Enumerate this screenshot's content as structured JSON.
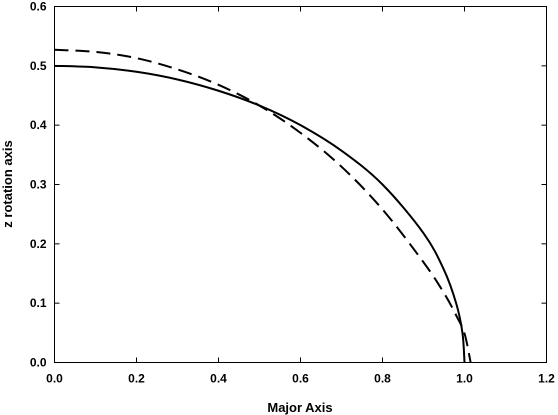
{
  "chart_data": {
    "type": "line",
    "title": "",
    "xlabel": "Major Axis",
    "ylabel": "z rotation axis",
    "xlim": [
      0,
      1.2
    ],
    "ylim": [
      0,
      0.6
    ],
    "xticks": [
      "0.0",
      "0.2",
      "0.4",
      "0.6",
      "0.8",
      "1.0",
      "1.2"
    ],
    "yticks": [
      "0.0",
      "0.1",
      "0.2",
      "0.3",
      "0.4",
      "0.5",
      "0.6"
    ],
    "grid": false,
    "legend": "none",
    "series": [
      {
        "style": "solid",
        "color": "#000000",
        "points": [
          [
            0.0,
            0.5
          ],
          [
            0.1,
            0.4975
          ],
          [
            0.2,
            0.49
          ],
          [
            0.3,
            0.477
          ],
          [
            0.4,
            0.458
          ],
          [
            0.5,
            0.433
          ],
          [
            0.6,
            0.4
          ],
          [
            0.7,
            0.357
          ],
          [
            0.8,
            0.3
          ],
          [
            0.9,
            0.218
          ],
          [
            0.95,
            0.156
          ],
          [
            0.98,
            0.099
          ],
          [
            0.995,
            0.05
          ],
          [
            1.0,
            0.0
          ]
        ]
      },
      {
        "style": "dashed",
        "color": "#000000",
        "points": [
          [
            0.0,
            0.527
          ],
          [
            0.1,
            0.5235
          ],
          [
            0.2,
            0.513
          ],
          [
            0.3,
            0.494
          ],
          [
            0.4,
            0.468
          ],
          [
            0.5,
            0.433
          ],
          [
            0.6,
            0.387
          ],
          [
            0.7,
            0.33
          ],
          [
            0.8,
            0.258
          ],
          [
            0.9,
            0.169
          ],
          [
            0.95,
            0.117
          ],
          [
            0.98,
            0.079
          ],
          [
            1.0,
            0.049
          ],
          [
            1.015,
            0.0
          ]
        ]
      }
    ]
  }
}
